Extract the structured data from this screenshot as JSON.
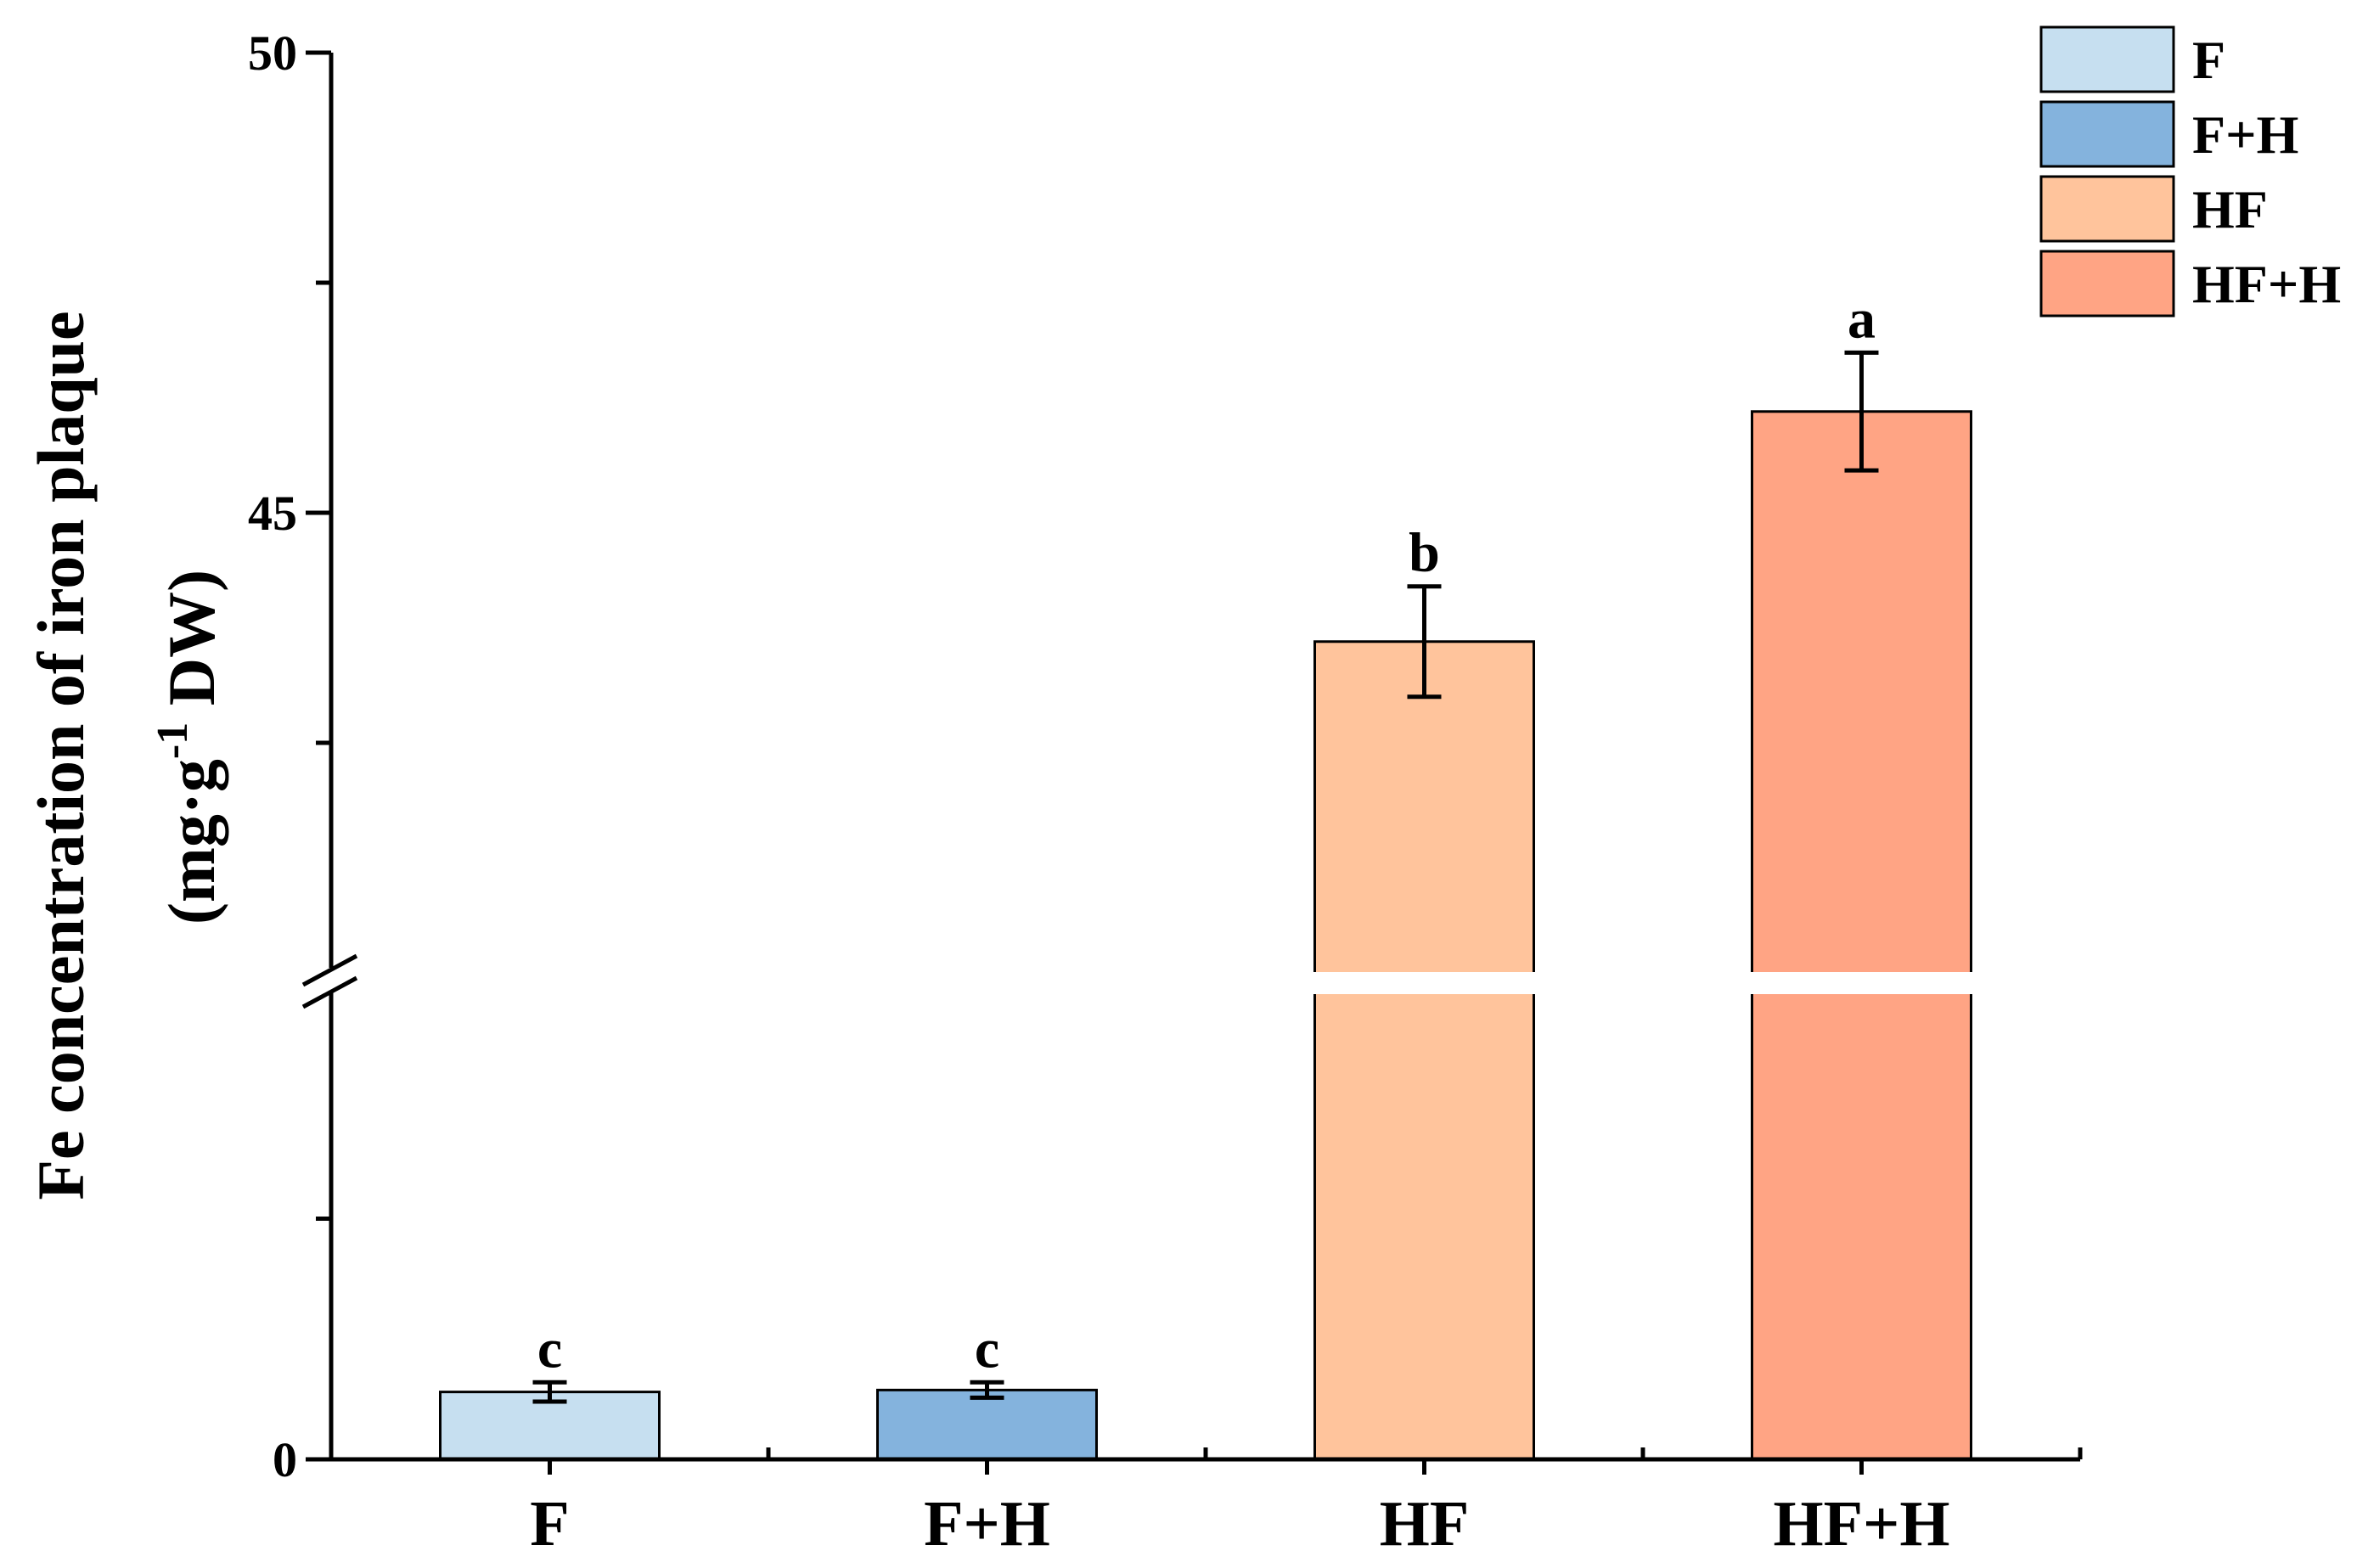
{
  "chart_data": {
    "type": "bar",
    "categories": [
      "F",
      "F+H",
      "HF",
      "HF+H"
    ],
    "values": [
      0.7,
      0.72,
      43.6,
      46.1
    ],
    "errors": [
      0.1,
      0.08,
      0.6,
      0.64
    ],
    "significance": [
      "c",
      "c",
      "b",
      "a"
    ],
    "colors": [
      "#c6dff0",
      "#84b3dd",
      "#ffc49c",
      "#ffa484"
    ],
    "legend": [
      "F",
      "F+H",
      "HF",
      "HF+H"
    ],
    "legend_position": "top-right",
    "ylabel_line1": "Fe concentration of iron plaque",
    "ylabel_line2_pre": "(mg·g",
    "ylabel_line2_sup": "-1",
    "ylabel_line2_post": " DW)",
    "y_axis_broken": true,
    "y_segments": [
      {
        "range": [
          0,
          5
        ],
        "tick_labels": [
          0
        ],
        "minor_ticks": [
          2.5
        ]
      },
      {
        "range": [
          40,
          50
        ],
        "tick_labels": [
          45,
          50
        ],
        "minor_ticks": [
          42.5,
          47.5
        ]
      }
    ],
    "grid": false
  }
}
